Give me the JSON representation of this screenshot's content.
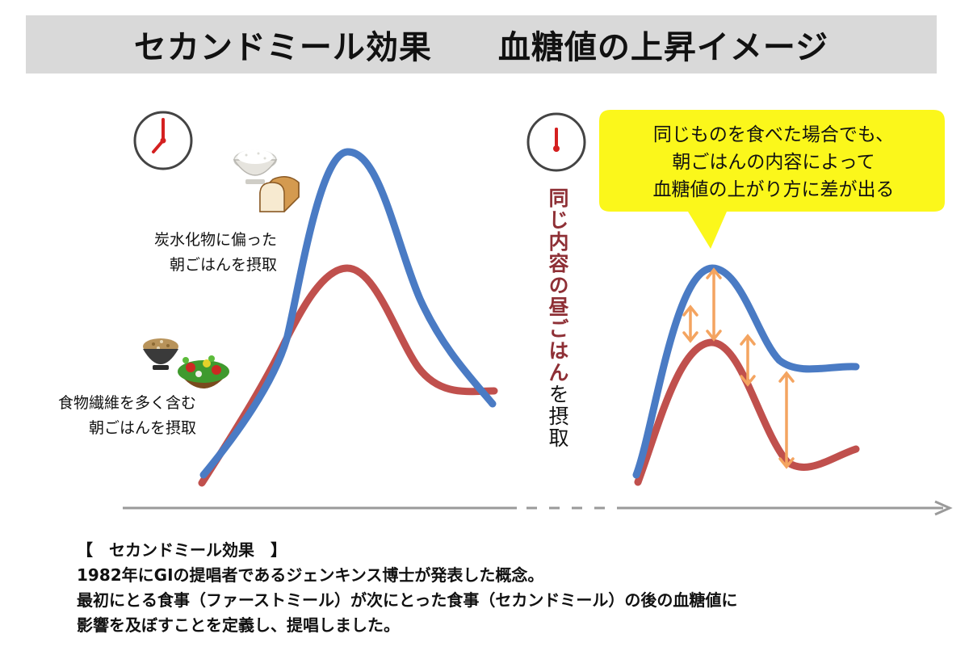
{
  "title": "セカンドミール効果　　血糖値の上昇イメージ",
  "left_panel": {
    "label_carb": [
      "炭水化物に偏った",
      "朝ごはんを摂取"
    ],
    "label_fiber": [
      "食物繊維を多く含む",
      "朝ごはんを摂取"
    ]
  },
  "center": {
    "lunch_main": "同じ内容の昼ごはん",
    "lunch_sub": "を摂取"
  },
  "callout": {
    "text": "同じものを食べた場合でも、\n朝ごはんの内容によって\n血糖値の上がり方に差が出る"
  },
  "footnote": {
    "heading": "【　セカンドミール効果　】",
    "lines": [
      "1982年にGIの提唱者であるジェンキンス博士が発表した概念。",
      "最初にとる食事（ファーストミール）が次にとった食事（セカンドミール）の後の血糖値に",
      "影響を及ぼすことを定義し、提唱しました。"
    ]
  },
  "colors": {
    "blue_curve": "#4a7bc4",
    "red_curve": "#c0504d",
    "arrow": "#f4a460",
    "callout_fill": "#fbf71b",
    "clock_hand": "#d42020",
    "title_bg": "#d9d9d9"
  },
  "icons": [
    "clock-icon",
    "rice-bowl-icon",
    "bread-slice-icon",
    "brown-rice-bowl-icon",
    "salad-bowl-icon"
  ]
}
